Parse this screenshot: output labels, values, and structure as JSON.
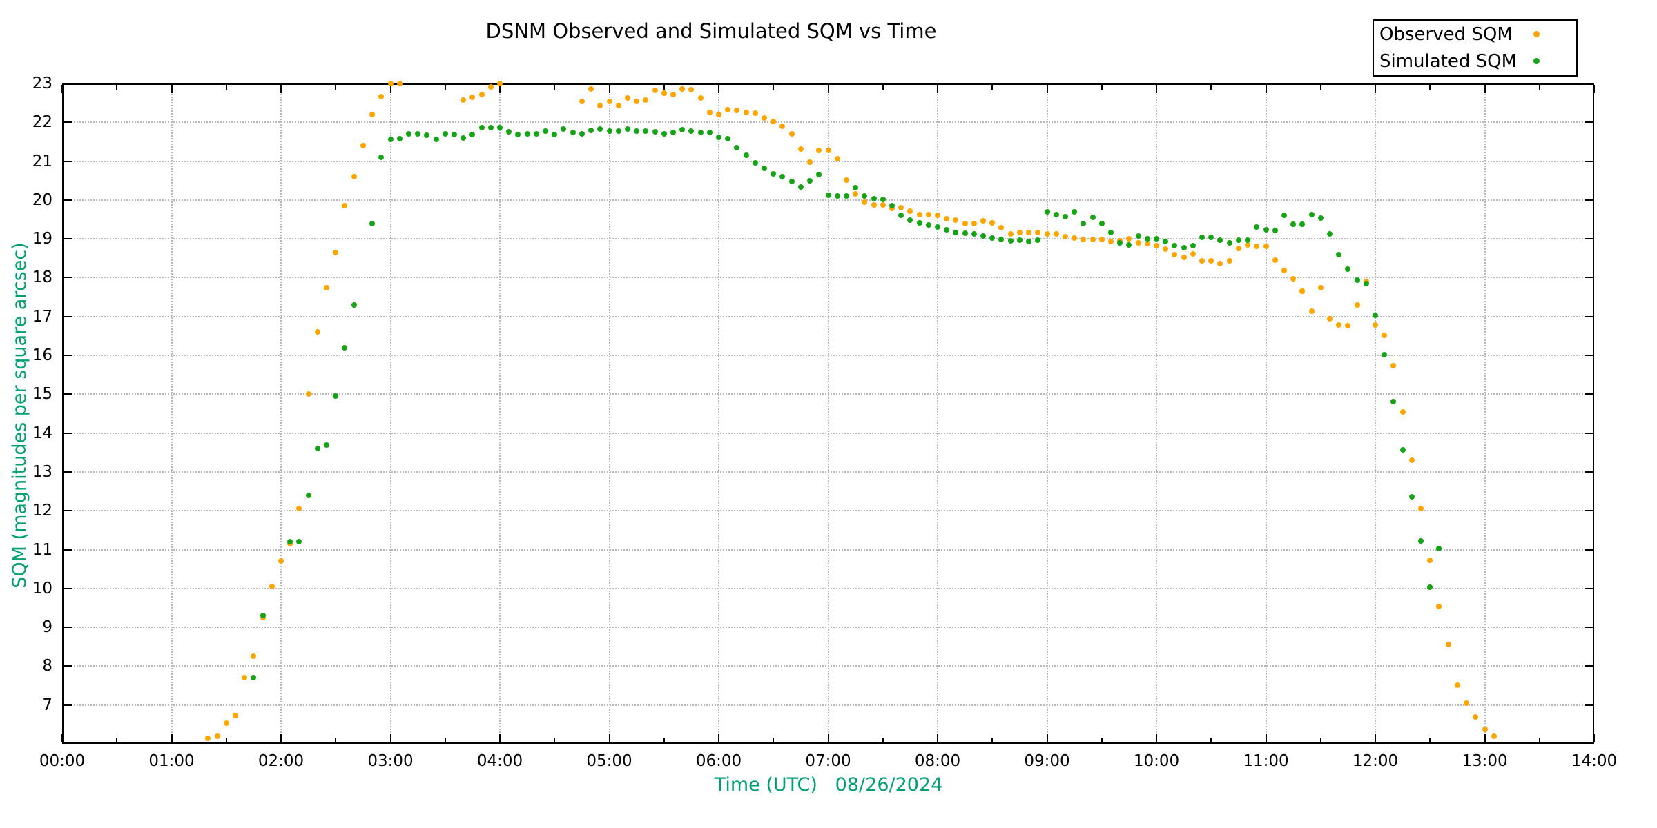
{
  "title": "DSNM Observed and Simulated SQM vs Time",
  "legend": {
    "observed_label": "Observed SQM",
    "simulated_label": "Simulated SQM"
  },
  "colors": {
    "observed": "#FFA500",
    "simulated": "#17A317",
    "axis_title": "#009E73",
    "grid": "#b9b9b9",
    "border": "#000000"
  },
  "chart_data": {
    "type": "scatter",
    "title": "DSNM Observed and Simulated SQM vs Time",
    "xlabel": "Time (UTC)   08/26/2024",
    "ylabel": "SQM (magnitudes per square arcsec)",
    "xlim": [
      0,
      14
    ],
    "ylim": [
      6,
      23
    ],
    "grid": true,
    "legend_position": "top-right",
    "x_tick_hours": [
      0,
      1,
      2,
      3,
      4,
      5,
      6,
      7,
      8,
      9,
      10,
      11,
      12,
      13,
      14
    ],
    "x_tick_labels": [
      "00:00",
      "01:00",
      "02:00",
      "03:00",
      "04:00",
      "05:00",
      "06:00",
      "07:00",
      "08:00",
      "09:00",
      "10:00",
      "11:00",
      "12:00",
      "13:00",
      "14:00"
    ],
    "y_ticks": [
      7,
      8,
      9,
      10,
      11,
      12,
      13,
      14,
      15,
      16,
      17,
      18,
      19,
      20,
      21,
      22,
      23
    ],
    "series": [
      {
        "name": "Observed SQM",
        "color": "#FFA500",
        "points": [
          [
            1.333,
            6.15
          ],
          [
            1.417,
            6.2
          ],
          [
            1.5,
            6.54
          ],
          [
            1.583,
            6.72
          ],
          [
            1.667,
            7.7
          ],
          [
            1.75,
            8.25
          ],
          [
            1.833,
            9.25
          ],
          [
            1.917,
            10.05
          ],
          [
            2.0,
            10.7
          ],
          [
            2.083,
            11.15
          ],
          [
            2.167,
            12.05
          ],
          [
            2.25,
            15.0
          ],
          [
            2.333,
            16.6
          ],
          [
            2.417,
            17.75
          ],
          [
            2.5,
            18.65
          ],
          [
            2.583,
            19.85
          ],
          [
            2.667,
            20.6
          ],
          [
            2.75,
            21.4
          ],
          [
            2.833,
            22.2
          ],
          [
            2.917,
            22.66
          ],
          [
            3.0,
            23.0
          ],
          [
            3.083,
            23.0
          ],
          [
            3.667,
            22.57
          ],
          [
            3.75,
            22.64
          ],
          [
            3.833,
            22.72
          ],
          [
            3.917,
            22.92
          ],
          [
            4.0,
            23.0
          ],
          [
            4.75,
            22.53
          ],
          [
            4.833,
            22.85
          ],
          [
            4.917,
            22.44
          ],
          [
            5.0,
            22.53
          ],
          [
            5.083,
            22.43
          ],
          [
            5.167,
            22.62
          ],
          [
            5.25,
            22.53
          ],
          [
            5.333,
            22.57
          ],
          [
            5.417,
            22.83
          ],
          [
            5.5,
            22.75
          ],
          [
            5.583,
            22.71
          ],
          [
            5.667,
            22.86
          ],
          [
            5.75,
            22.84
          ],
          [
            5.833,
            22.62
          ],
          [
            5.917,
            22.26
          ],
          [
            6.0,
            22.2
          ],
          [
            6.083,
            22.32
          ],
          [
            6.167,
            22.3
          ],
          [
            6.25,
            22.26
          ],
          [
            6.333,
            22.23
          ],
          [
            6.417,
            22.12
          ],
          [
            6.5,
            22.02
          ],
          [
            6.583,
            21.89
          ],
          [
            6.667,
            21.7
          ],
          [
            6.75,
            21.31
          ],
          [
            6.833,
            20.97
          ],
          [
            6.917,
            21.27
          ],
          [
            7.0,
            21.28
          ],
          [
            7.083,
            21.07
          ],
          [
            7.167,
            20.52
          ],
          [
            7.25,
            20.15
          ],
          [
            7.333,
            19.95
          ],
          [
            7.417,
            19.87
          ],
          [
            7.5,
            19.87
          ],
          [
            7.583,
            19.78
          ],
          [
            7.667,
            19.81
          ],
          [
            7.75,
            19.71
          ],
          [
            7.833,
            19.63
          ],
          [
            7.917,
            19.63
          ],
          [
            8.0,
            19.6
          ],
          [
            8.083,
            19.52
          ],
          [
            8.167,
            19.48
          ],
          [
            8.25,
            19.39
          ],
          [
            8.333,
            19.4
          ],
          [
            8.417,
            19.46
          ],
          [
            8.5,
            19.42
          ],
          [
            8.583,
            19.28
          ],
          [
            8.667,
            19.13
          ],
          [
            8.75,
            19.16
          ],
          [
            8.833,
            19.16
          ],
          [
            8.917,
            19.16
          ],
          [
            9.0,
            19.13
          ],
          [
            9.083,
            19.13
          ],
          [
            9.167,
            19.05
          ],
          [
            9.25,
            19.02
          ],
          [
            9.333,
            18.99
          ],
          [
            9.417,
            18.98
          ],
          [
            9.5,
            18.98
          ],
          [
            9.583,
            18.93
          ],
          [
            9.667,
            18.95
          ],
          [
            9.75,
            19.0
          ],
          [
            9.833,
            18.89
          ],
          [
            9.917,
            18.87
          ],
          [
            10.0,
            18.82
          ],
          [
            10.083,
            18.74
          ],
          [
            10.167,
            18.6
          ],
          [
            10.25,
            18.53
          ],
          [
            10.333,
            18.62
          ],
          [
            10.417,
            18.44
          ],
          [
            10.5,
            18.44
          ],
          [
            10.583,
            18.37
          ],
          [
            10.667,
            18.44
          ],
          [
            10.75,
            18.75
          ],
          [
            10.833,
            18.85
          ],
          [
            10.917,
            18.81
          ],
          [
            11.0,
            18.81
          ],
          [
            11.083,
            18.46
          ],
          [
            11.167,
            18.18
          ],
          [
            11.25,
            17.98
          ],
          [
            11.333,
            17.65
          ],
          [
            11.417,
            17.13
          ],
          [
            11.5,
            17.75
          ],
          [
            11.583,
            16.95
          ],
          [
            11.667,
            16.79
          ],
          [
            11.75,
            16.77
          ],
          [
            11.833,
            17.3
          ],
          [
            11.917,
            17.9
          ],
          [
            12.0,
            16.79
          ],
          [
            12.083,
            16.52
          ],
          [
            12.167,
            15.74
          ],
          [
            12.25,
            14.55
          ],
          [
            12.333,
            13.3
          ],
          [
            12.417,
            12.06
          ],
          [
            12.5,
            10.73
          ],
          [
            12.583,
            9.54
          ],
          [
            12.667,
            8.56
          ],
          [
            12.75,
            7.51
          ],
          [
            12.833,
            7.05
          ],
          [
            12.917,
            6.7
          ],
          [
            13.0,
            6.37
          ],
          [
            13.083,
            6.2
          ]
        ]
      },
      {
        "name": "Simulated SQM",
        "color": "#17A317",
        "points": [
          [
            1.75,
            7.7
          ],
          [
            1.833,
            9.3
          ],
          [
            2.083,
            11.2
          ],
          [
            2.167,
            11.2
          ],
          [
            2.25,
            12.4
          ],
          [
            2.333,
            13.6
          ],
          [
            2.417,
            13.7
          ],
          [
            2.5,
            14.95
          ],
          [
            2.583,
            16.2
          ],
          [
            2.667,
            17.3
          ],
          [
            2.833,
            19.4
          ],
          [
            2.917,
            21.1
          ],
          [
            3.0,
            21.56
          ],
          [
            3.083,
            21.58
          ],
          [
            3.167,
            21.7
          ],
          [
            3.25,
            21.71
          ],
          [
            3.333,
            21.66
          ],
          [
            3.417,
            21.57
          ],
          [
            3.5,
            21.7
          ],
          [
            3.583,
            21.68
          ],
          [
            3.667,
            21.59
          ],
          [
            3.75,
            21.68
          ],
          [
            3.833,
            21.86
          ],
          [
            3.917,
            21.87
          ],
          [
            4.0,
            21.87
          ],
          [
            4.083,
            21.75
          ],
          [
            4.167,
            21.68
          ],
          [
            4.25,
            21.7
          ],
          [
            4.333,
            21.71
          ],
          [
            4.417,
            21.77
          ],
          [
            4.5,
            21.68
          ],
          [
            4.583,
            21.82
          ],
          [
            4.667,
            21.73
          ],
          [
            4.75,
            21.71
          ],
          [
            4.833,
            21.8
          ],
          [
            4.917,
            21.82
          ],
          [
            5.0,
            21.77
          ],
          [
            5.083,
            21.78
          ],
          [
            5.167,
            21.83
          ],
          [
            5.25,
            21.77
          ],
          [
            5.333,
            21.77
          ],
          [
            5.417,
            21.76
          ],
          [
            5.5,
            21.7
          ],
          [
            5.583,
            21.73
          ],
          [
            5.667,
            21.81
          ],
          [
            5.75,
            21.78
          ],
          [
            5.833,
            21.73
          ],
          [
            5.917,
            21.73
          ],
          [
            6.0,
            21.61
          ],
          [
            6.083,
            21.58
          ],
          [
            6.167,
            21.35
          ],
          [
            6.25,
            21.15
          ],
          [
            6.333,
            20.95
          ],
          [
            6.417,
            20.81
          ],
          [
            6.5,
            20.67
          ],
          [
            6.583,
            20.6
          ],
          [
            6.667,
            20.47
          ],
          [
            6.75,
            20.33
          ],
          [
            6.833,
            20.49
          ],
          [
            6.917,
            20.65
          ],
          [
            7.0,
            20.13
          ],
          [
            7.083,
            20.1
          ],
          [
            7.167,
            20.1
          ],
          [
            7.25,
            20.31
          ],
          [
            7.333,
            20.1
          ],
          [
            7.417,
            20.03
          ],
          [
            7.5,
            20.01
          ],
          [
            7.583,
            19.85
          ],
          [
            7.667,
            19.6
          ],
          [
            7.75,
            19.49
          ],
          [
            7.833,
            19.42
          ],
          [
            7.917,
            19.36
          ],
          [
            8.0,
            19.31
          ],
          [
            8.083,
            19.23
          ],
          [
            8.167,
            19.17
          ],
          [
            8.25,
            19.14
          ],
          [
            8.333,
            19.12
          ],
          [
            8.417,
            19.08
          ],
          [
            8.5,
            19.02
          ],
          [
            8.583,
            18.98
          ],
          [
            8.667,
            18.95
          ],
          [
            8.75,
            18.97
          ],
          [
            8.833,
            18.94
          ],
          [
            8.917,
            18.97
          ],
          [
            9.0,
            19.69
          ],
          [
            9.083,
            19.62
          ],
          [
            9.167,
            19.58
          ],
          [
            9.25,
            19.7
          ],
          [
            9.333,
            19.4
          ],
          [
            9.417,
            19.55
          ],
          [
            9.5,
            19.4
          ],
          [
            9.583,
            19.16
          ],
          [
            9.667,
            18.9
          ],
          [
            9.75,
            18.85
          ],
          [
            9.833,
            19.08
          ],
          [
            9.917,
            19.0
          ],
          [
            10.0,
            19.0
          ],
          [
            10.083,
            18.94
          ],
          [
            10.167,
            18.82
          ],
          [
            10.25,
            18.78
          ],
          [
            10.333,
            18.82
          ],
          [
            10.417,
            19.03
          ],
          [
            10.5,
            19.03
          ],
          [
            10.583,
            18.96
          ],
          [
            10.667,
            18.9
          ],
          [
            10.75,
            18.96
          ],
          [
            10.833,
            18.96
          ],
          [
            10.917,
            19.31
          ],
          [
            11.0,
            19.24
          ],
          [
            11.083,
            19.21
          ],
          [
            11.167,
            19.6
          ],
          [
            11.25,
            19.37
          ],
          [
            11.333,
            19.37
          ],
          [
            11.417,
            19.62
          ],
          [
            11.5,
            19.53
          ],
          [
            11.583,
            19.12
          ],
          [
            11.667,
            18.6
          ],
          [
            11.75,
            18.23
          ],
          [
            11.833,
            17.93
          ],
          [
            11.917,
            17.84
          ],
          [
            12.0,
            17.04
          ],
          [
            12.083,
            16.01
          ],
          [
            12.167,
            14.81
          ],
          [
            12.25,
            13.57
          ],
          [
            12.333,
            12.36
          ],
          [
            12.417,
            11.22
          ],
          [
            12.5,
            10.03
          ],
          [
            12.583,
            11.03
          ]
        ]
      }
    ]
  }
}
